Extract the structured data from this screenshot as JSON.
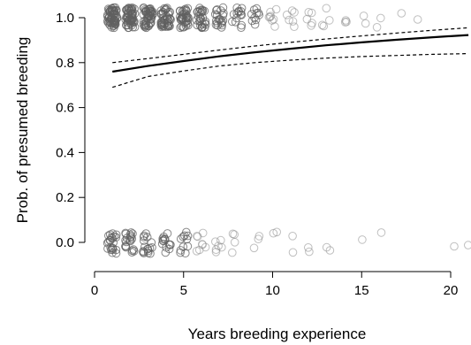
{
  "chart_data": {
    "type": "scatter",
    "title": "",
    "xlabel": "Years breeding experience",
    "ylabel": "Prob. of presumed breeding",
    "xlim": [
      0,
      21
    ],
    "ylim": [
      -0.1,
      1.05
    ],
    "xticks": [
      0,
      5,
      10,
      15,
      20
    ],
    "xtick_labels": [
      "0",
      "5",
      "10",
      "15",
      "20"
    ],
    "yticks": [
      0.0,
      0.2,
      0.4,
      0.6,
      0.8,
      1.0
    ],
    "ytick_labels": [
      "0.0",
      "0.2",
      "0.4",
      "0.6",
      "0.8",
      "1.0"
    ],
    "grid": false,
    "point_color": "#8a8a8a",
    "dense_point_color": "#606060",
    "line_color": "#000000",
    "jitter_points": [
      {
        "x": 1,
        "y": 1,
        "count": 60
      },
      {
        "x": 2,
        "y": 1,
        "count": 55
      },
      {
        "x": 3,
        "y": 1,
        "count": 48
      },
      {
        "x": 4,
        "y": 1,
        "count": 42
      },
      {
        "x": 5,
        "y": 1,
        "count": 36
      },
      {
        "x": 6,
        "y": 1,
        "count": 28
      },
      {
        "x": 7,
        "y": 1,
        "count": 20
      },
      {
        "x": 8,
        "y": 1,
        "count": 14
      },
      {
        "x": 9,
        "y": 1,
        "count": 10
      },
      {
        "x": 10,
        "y": 1,
        "count": 8
      },
      {
        "x": 11,
        "y": 1,
        "count": 6
      },
      {
        "x": 12,
        "y": 1,
        "count": 5
      },
      {
        "x": 13,
        "y": 1,
        "count": 4
      },
      {
        "x": 14,
        "y": 1,
        "count": 3
      },
      {
        "x": 15,
        "y": 1,
        "count": 2
      },
      {
        "x": 16,
        "y": 1,
        "count": 2
      },
      {
        "x": 17,
        "y": 1,
        "count": 1
      },
      {
        "x": 18,
        "y": 1,
        "count": 1
      },
      {
        "x": 1,
        "y": 0,
        "count": 22
      },
      {
        "x": 2,
        "y": 0,
        "count": 20
      },
      {
        "x": 3,
        "y": 0,
        "count": 17
      },
      {
        "x": 4,
        "y": 0,
        "count": 14
      },
      {
        "x": 5,
        "y": 0,
        "count": 11
      },
      {
        "x": 6,
        "y": 0,
        "count": 8
      },
      {
        "x": 7,
        "y": 0,
        "count": 6
      },
      {
        "x": 8,
        "y": 0,
        "count": 4
      },
      {
        "x": 9,
        "y": 0,
        "count": 3
      },
      {
        "x": 10,
        "y": 0,
        "count": 2
      },
      {
        "x": 11,
        "y": 0,
        "count": 2
      },
      {
        "x": 12,
        "y": 0,
        "count": 2
      },
      {
        "x": 13,
        "y": 0,
        "count": 2
      },
      {
        "x": 15,
        "y": 0,
        "count": 1
      },
      {
        "x": 16,
        "y": 0,
        "count": 1
      },
      {
        "x": 20,
        "y": 0,
        "count": 1
      },
      {
        "x": 21,
        "y": 0,
        "count": 1
      }
    ],
    "series": [
      {
        "style": "solid",
        "x": [
          1,
          3,
          5,
          7,
          9,
          11,
          13,
          15,
          17,
          19,
          21
        ],
        "y": [
          0.76,
          0.785,
          0.807,
          0.828,
          0.846,
          0.862,
          0.877,
          0.89,
          0.902,
          0.913,
          0.923
        ]
      },
      {
        "style": "dashed",
        "x": [
          1,
          3,
          5,
          7,
          9,
          11,
          13,
          15,
          17,
          19,
          21
        ],
        "y": [
          0.8,
          0.818,
          0.837,
          0.856,
          0.874,
          0.89,
          0.905,
          0.919,
          0.932,
          0.944,
          0.955
        ]
      },
      {
        "style": "dashed",
        "x": [
          1,
          3,
          5,
          7,
          9,
          11,
          13,
          15,
          17,
          19,
          21
        ],
        "y": [
          0.69,
          0.738,
          0.763,
          0.785,
          0.8,
          0.811,
          0.82,
          0.827,
          0.832,
          0.837,
          0.84
        ]
      }
    ]
  }
}
